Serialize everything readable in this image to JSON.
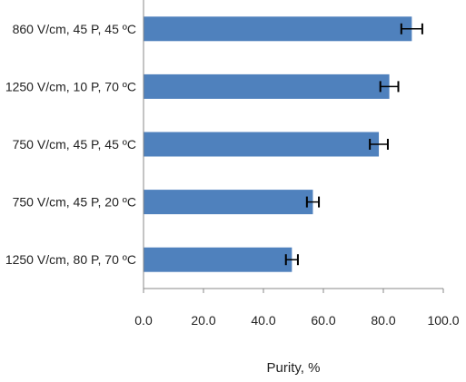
{
  "chart_data": {
    "type": "bar",
    "orientation": "horizontal",
    "categories": [
      "860 V/cm, 45 P, 45 ºC",
      "1250 V/cm, 10 P, 70 ºC",
      "750 V/cm, 45 P, 45 ºC",
      "750 V/cm, 45 P, 20  ºC",
      "1250 V/cm, 80 P, 70 ºC"
    ],
    "values": [
      89.5,
      82.0,
      78.5,
      56.5,
      49.5
    ],
    "errors": [
      3.5,
      3.0,
      3.0,
      2.0,
      2.0
    ],
    "xlabel": "Purity, %",
    "xlim": [
      0,
      100
    ],
    "xticks": [
      "0.0",
      "20.0",
      "40.0",
      "60.0",
      "80.0",
      "100.0"
    ],
    "bar_color": "#4f81bd",
    "grid": false
  }
}
